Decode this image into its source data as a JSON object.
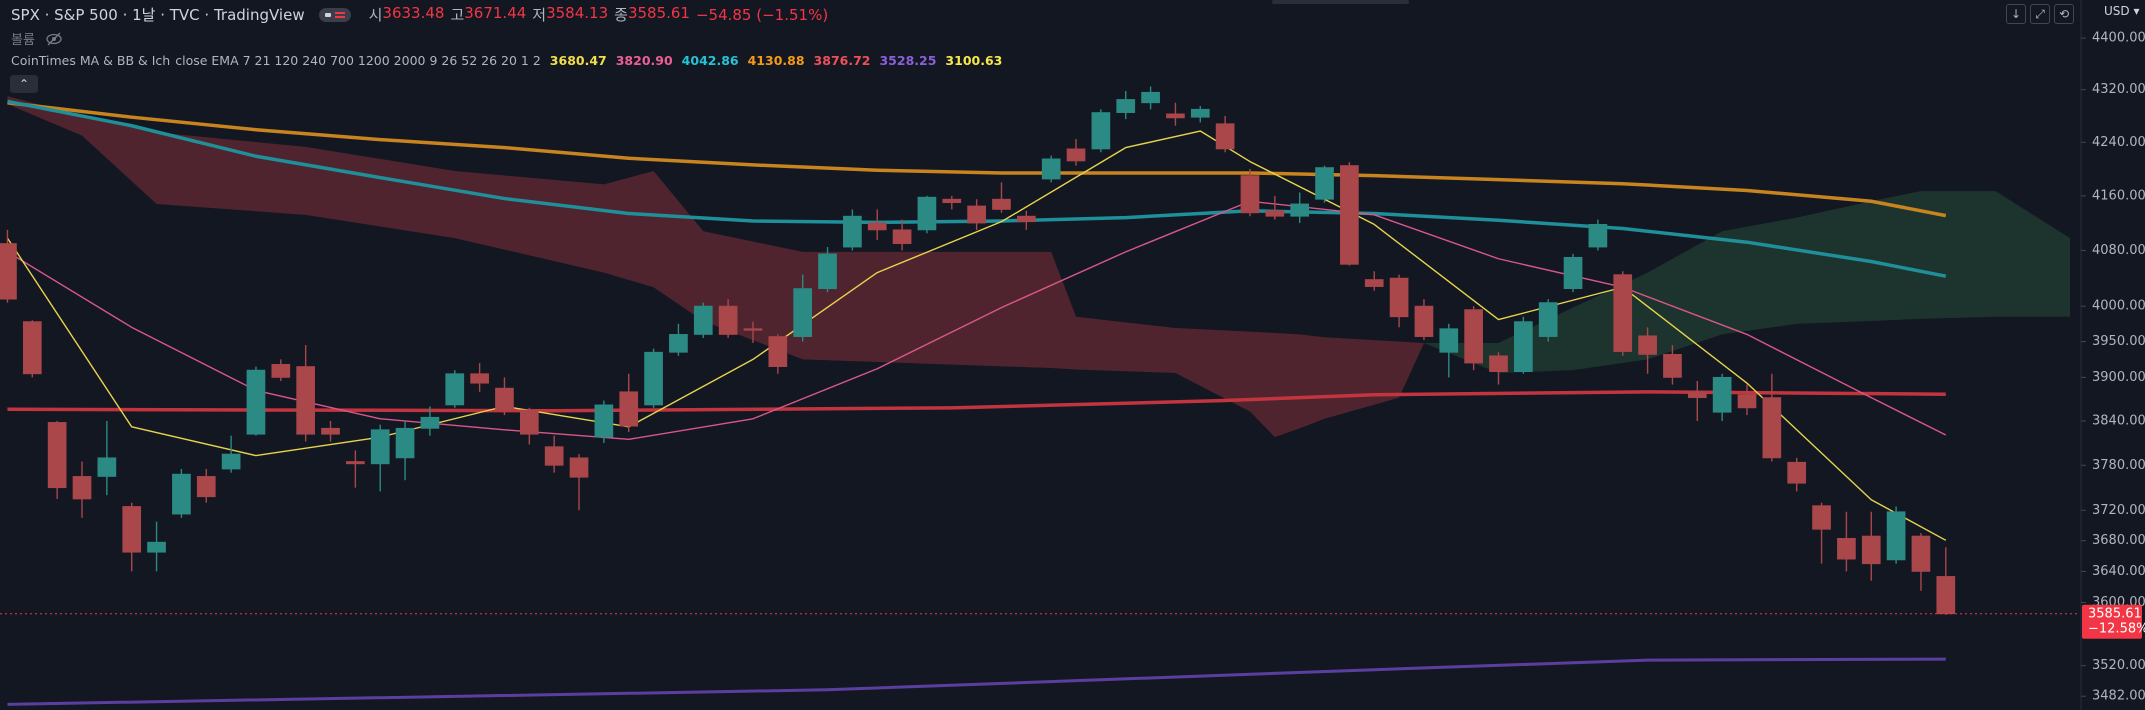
{
  "header": {
    "symbol": "SPX · S&P 500 · 1날 · TVC · TradingView",
    "ohlc": [
      {
        "label": "시",
        "value": 3633.48
      },
      {
        "label": "고",
        "value": 3671.44
      },
      {
        "label": "저",
        "value": 3584.13
      },
      {
        "label": "종",
        "value": 3585.61
      }
    ],
    "change": "−54.85 (−1.51%)",
    "volume_label": "볼륨",
    "indicator": {
      "name": "CoinTimes MA & BB & Ich",
      "params": "close EMA 7 21 120 240 700 1200 2000 9 26 52 26 20 1 2",
      "values": [
        {
          "value": 3680.47,
          "label": "3680.47",
          "color": "#f2dd4a"
        },
        {
          "value": 3820.9,
          "label": "3820.90",
          "color": "#ec5f95"
        },
        {
          "value": 4042.86,
          "label": "4042.86",
          "color": "#26c2d6"
        },
        {
          "value": 4130.88,
          "label": "4130.88",
          "color": "#f59a16"
        },
        {
          "value": 3876.72,
          "label": "3876.72",
          "color": "#ef4f5a"
        },
        {
          "value": 3528.25,
          "label": "3528.25",
          "color": "#8a60d6"
        },
        {
          "value": 3100.63,
          "label": "3100.63",
          "color": "#f5e84a"
        }
      ]
    }
  },
  "currency": "USD",
  "last_change": "−12.58%",
  "chart_data": {
    "type": "candlestick",
    "log_scale": true,
    "grid": false,
    "up_color": "#2b8a84",
    "down_color": "#a9474b",
    "xlim": [
      -0.3,
      83.4
    ],
    "ylim": [
      3465,
      4460
    ],
    "yticks": [
      {
        "value": 4400,
        "label": "4400.00"
      },
      {
        "value": 4320,
        "label": "4320.00"
      },
      {
        "value": 4240,
        "label": "4240.00"
      },
      {
        "value": 4160,
        "label": "4160.00"
      },
      {
        "value": 4080,
        "label": "4080.00"
      },
      {
        "value": 4000,
        "label": "4000.00"
      },
      {
        "value": 3950,
        "label": "3950.00"
      },
      {
        "value": 3900,
        "label": "3900.00"
      },
      {
        "value": 3840,
        "label": "3840.00"
      },
      {
        "value": 3780,
        "label": "3780.00"
      },
      {
        "value": 3720,
        "label": "3720.00"
      },
      {
        "value": 3680,
        "label": "3680.00"
      },
      {
        "value": 3640,
        "label": "3640.00"
      },
      {
        "value": 3600,
        "label": "3600.00"
      },
      {
        "value": 3520,
        "label": "3520.00"
      },
      {
        "value": 3482,
        "label": "3482.00"
      }
    ],
    "open": [
      4090,
      3978,
      3838,
      3765,
      3765,
      3725,
      3665,
      3715,
      3765,
      3775,
      3822,
      3918,
      3915,
      3830,
      3785,
      3782,
      3790,
      3830,
      3862,
      3905,
      3885,
      3855,
      3805,
      3790,
      3818,
      3880,
      3862,
      3935,
      3960,
      4000,
      3968,
      3957,
      3957,
      4025,
      4085,
      4120,
      4110,
      4110,
      4155,
      4145,
      4155,
      4130,
      4185,
      4230,
      4230,
      4285,
      4300,
      4283,
      4278,
      4268,
      4190,
      4138,
      4130,
      4155,
      4205,
      4038,
      4040,
      4000,
      3935,
      3995,
      3930,
      3908,
      3957,
      4025,
      4085,
      4045,
      3958,
      3932,
      3880,
      3852,
      3876,
      3872,
      3784,
      3726,
      3683,
      3686,
      3655,
      3686,
      3633.48
    ],
    "high": [
      4110,
      3980,
      3840,
      3785,
      3840,
      3730,
      3705,
      3775,
      3775,
      3820,
      3915,
      3925,
      3945,
      3840,
      3800,
      3835,
      3840,
      3860,
      3910,
      3920,
      3900,
      3858,
      3820,
      3795,
      3868,
      3905,
      3940,
      3975,
      4005,
      4010,
      3978,
      3960,
      4045,
      4085,
      4140,
      4140,
      4125,
      4160,
      4160,
      4155,
      4180,
      4138,
      4220,
      4245,
      4290,
      4318,
      4325,
      4300,
      4295,
      4280,
      4200,
      4160,
      4165,
      4205,
      4210,
      4050,
      4045,
      4010,
      3975,
      4000,
      3935,
      3985,
      4010,
      4075,
      4125,
      4050,
      3970,
      3945,
      3895,
      3905,
      3890,
      3905,
      3790,
      3730,
      3718,
      3718,
      3725,
      3690,
      3671.44
    ],
    "low": [
      4005,
      3900,
      3735,
      3710,
      3740,
      3640,
      3640,
      3710,
      3730,
      3770,
      3820,
      3895,
      3812,
      3812,
      3750,
      3745,
      3760,
      3820,
      3858,
      3880,
      3848,
      3808,
      3770,
      3720,
      3810,
      3825,
      3858,
      3930,
      3955,
      3955,
      3948,
      3905,
      3950,
      4020,
      4080,
      4095,
      4080,
      4105,
      4140,
      4110,
      4135,
      4110,
      4180,
      4205,
      4225,
      4275,
      4290,
      4265,
      4270,
      4225,
      4130,
      4125,
      4120,
      4150,
      4058,
      4022,
      3970,
      3952,
      3900,
      3910,
      3890,
      3905,
      3950,
      4020,
      4080,
      3930,
      3905,
      3890,
      3840,
      3840,
      3848,
      3785,
      3745,
      3650,
      3640,
      3628,
      3650,
      3615,
      3584.13
    ],
    "close": [
      4010,
      3905,
      3750,
      3735,
      3790,
      3665,
      3678,
      3768,
      3738,
      3795,
      3910,
      3900,
      3822,
      3822,
      3782,
      3828,
      3830,
      3845,
      3905,
      3892,
      3855,
      3822,
      3780,
      3764,
      3862,
      3833,
      3935,
      3960,
      4000,
      3960,
      3966,
      3915,
      4025,
      4075,
      4130,
      4110,
      4090,
      4158,
      4150,
      4120,
      4140,
      4122,
      4215,
      4212,
      4285,
      4305,
      4316,
      4277,
      4290,
      4230,
      4135,
      4130,
      4148,
      4202,
      4060,
      4028,
      3985,
      3957,
      3968,
      3920,
      3908,
      3978,
      4005,
      4070,
      4118,
      3936,
      3932,
      3900,
      3872,
      3900,
      3858,
      3790,
      3756,
      3695,
      3656,
      3650,
      3718,
      3640,
      3585.61
    ],
    "bands": [
      {
        "color": "#5a2730",
        "x": [
          0,
          3,
          6,
          12,
          18,
          24,
          26,
          28,
          32,
          42,
          43,
          47,
          50,
          51,
          52,
          53,
          56,
          57
        ],
        "upper": [
          4310,
          4280,
          4255,
          4233,
          4197,
          4177,
          4197,
          4108,
          4078,
          4078,
          3985,
          3969,
          3964,
          3962,
          3960,
          3956,
          3950,
          3948
        ],
        "lower": [
          4298,
          4250,
          4148,
          4132,
          4098,
          4048,
          4027,
          3979,
          3925,
          3913,
          3911,
          3906,
          3853,
          3818,
          3830,
          3843,
          3872,
          3948
        ]
      },
      {
        "color": "#1e3a2f",
        "x": [
          57,
          60,
          63,
          66,
          69,
          72,
          75,
          77,
          80,
          83
        ],
        "upper": [
          3948,
          3948,
          3998,
          4048,
          4108,
          4128,
          4152,
          4167,
          4167,
          4098
        ],
        "lower": [
          3948,
          3906,
          3910,
          3925,
          3960,
          3975,
          3979,
          3982,
          3985,
          3985
        ]
      }
    ],
    "lines": [
      {
        "color": "#5b3fa0",
        "width": 3,
        "x": [
          0,
          33,
          55,
          66,
          78
        ],
        "values": [
          3472,
          3490,
          3515,
          3527,
          3528.25
        ]
      },
      {
        "color": "#c2353f",
        "width": 3.5,
        "x": [
          0,
          22,
          38,
          49,
          55,
          66,
          78
        ],
        "values": [
          3856,
          3854,
          3858,
          3868,
          3876,
          3880,
          3876.72
        ]
      },
      {
        "color": "#c7841f",
        "width": 3.5,
        "x": [
          0,
          5,
          10,
          15,
          20,
          25,
          30,
          35,
          40,
          45,
          50,
          55,
          60,
          65,
          70,
          75,
          78
        ],
        "values": [
          4300,
          4278,
          4259,
          4244,
          4232,
          4216,
          4206,
          4198,
          4194,
          4194,
          4194,
          4190,
          4184,
          4178,
          4168,
          4152,
          4130.88
        ]
      },
      {
        "color": "#1f8f9a",
        "width": 3.5,
        "x": [
          0,
          5,
          10,
          15,
          20,
          25,
          30,
          35,
          40,
          45,
          50,
          55,
          60,
          65,
          70,
          75,
          78
        ],
        "values": [
          4302,
          4265,
          4219,
          4187,
          4156,
          4134,
          4123,
          4121,
          4123,
          4128,
          4138,
          4134,
          4124,
          4112,
          4092,
          4064,
          4042.86
        ]
      },
      {
        "color": "#d8578a",
        "width": 1.4,
        "x": [
          0,
          5,
          10,
          15,
          20,
          25,
          30,
          35,
          40,
          45,
          50,
          55,
          60,
          65,
          70,
          75,
          78
        ],
        "values": [
          4078,
          3970,
          3882,
          3843,
          3828,
          3815,
          3843,
          3912,
          3998,
          4078,
          4152,
          4132,
          4068,
          4027,
          3960,
          3872,
          3820.9
        ]
      },
      {
        "color": "#e8d44d",
        "width": 1.4,
        "x": [
          0,
          5,
          10,
          15,
          20,
          25,
          30,
          35,
          40,
          45,
          48,
          50,
          55,
          60,
          65,
          70,
          75,
          78
        ],
        "values": [
          4098,
          3832,
          3793,
          3818,
          3860,
          3832,
          3925,
          4048,
          4122,
          4232,
          4257,
          4211,
          4118,
          3981,
          4027,
          3892,
          3734,
          3680.47
        ]
      }
    ]
  }
}
